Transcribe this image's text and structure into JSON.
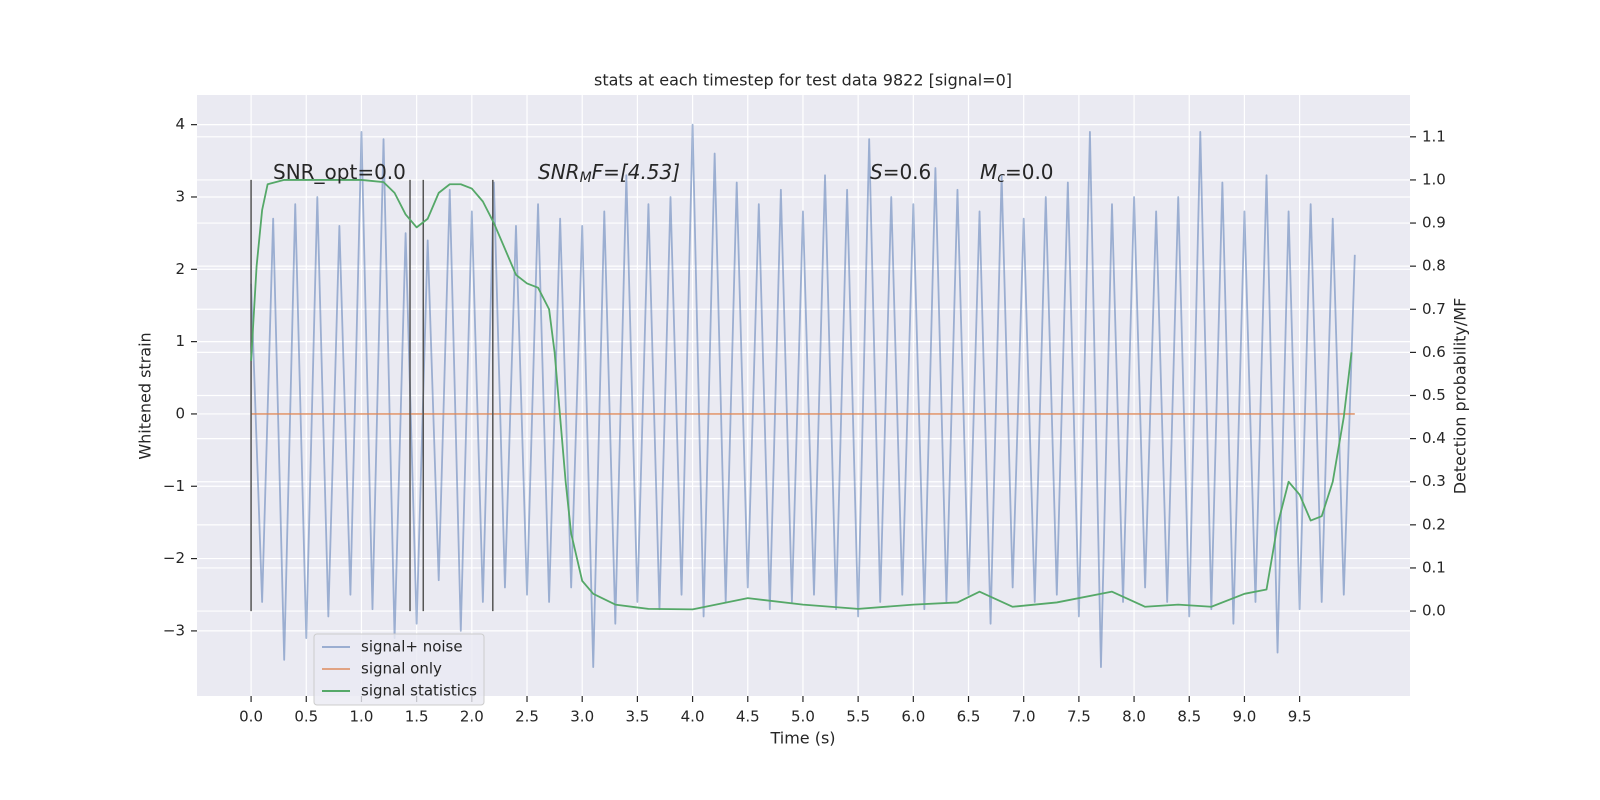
{
  "chart_data": {
    "type": "line",
    "title": "stats at each timestep for test data 9822 [signal=0]",
    "x_label": "Time (s)",
    "y_label": "Whitened strain",
    "y2_label": "Detection probability/MF",
    "xlim": [
      -0.49,
      10.5
    ],
    "ylim": [
      -3.9,
      4.41
    ],
    "y2lim": [
      -0.197,
      1.197
    ],
    "xticks": [
      {
        "value": 0,
        "label": "0.0"
      },
      {
        "value": 0.5,
        "label": "0.5"
      },
      {
        "value": 1,
        "label": "1.0"
      },
      {
        "value": 1.5,
        "label": "1.5"
      },
      {
        "value": 2,
        "label": "2.0"
      },
      {
        "value": 2.5,
        "label": "2.5"
      },
      {
        "value": 3,
        "label": "3.0"
      },
      {
        "value": 3.5,
        "label": "3.5"
      },
      {
        "value": 4,
        "label": "4.0"
      },
      {
        "value": 4.5,
        "label": "4.5"
      },
      {
        "value": 5,
        "label": "5.0"
      },
      {
        "value": 5.5,
        "label": "5.5"
      },
      {
        "value": 6,
        "label": "6.0"
      },
      {
        "value": 6.5,
        "label": "6.5"
      },
      {
        "value": 7,
        "label": "7.0"
      },
      {
        "value": 7.5,
        "label": "7.5"
      },
      {
        "value": 8,
        "label": "8.0"
      },
      {
        "value": 8.5,
        "label": "8.5"
      },
      {
        "value": 9,
        "label": "9.0"
      },
      {
        "value": 9.5,
        "label": "9.5"
      }
    ],
    "yticks": [
      {
        "value": -3,
        "label": "−3"
      },
      {
        "value": -2,
        "label": "−2"
      },
      {
        "value": -1,
        "label": "−1"
      },
      0,
      1,
      2,
      3,
      4
    ],
    "y2ticks": [
      {
        "value": 0,
        "label": "0.0"
      },
      0.1,
      0.2,
      0.3,
      0.4,
      0.5,
      0.6,
      0.7,
      0.8,
      0.9,
      {
        "value": 1,
        "label": "1.0"
      },
      1.1
    ],
    "grid": true,
    "legend": "lower left",
    "annotations": [
      {
        "text": "SNR_opt=0.0"
      },
      {
        "symbol": "SNR",
        "subscript": "M",
        "text": "F=[4.53]"
      },
      {
        "symbol": "S",
        "text": "=0.6"
      },
      {
        "symbol": "M",
        "subscript": "c",
        "text": "=0.0"
      }
    ],
    "vlines": {
      "x": [
        0,
        1.44,
        1.56,
        2.19
      ],
      "ymin": 0,
      "ymax": 1,
      "axis": "y2",
      "color": "#555555"
    },
    "series": [
      {
        "name": "signal+ noise",
        "color": "#4c72b0",
        "alpha": 0.5,
        "x": [
          0,
          0.1,
          0.2,
          0.3,
          0.4,
          0.5,
          0.6,
          0.7,
          0.8,
          0.9,
          1,
          1.1,
          1.2,
          1.3,
          1.4,
          1.5,
          1.6,
          1.7,
          1.8,
          1.9,
          2,
          2.1,
          2.2,
          2.3,
          2.4,
          2.5,
          2.6,
          2.7,
          2.8,
          2.9,
          3,
          3.1,
          3.2,
          3.3,
          3.4,
          3.5,
          3.6,
          3.7,
          3.8,
          3.9,
          4,
          4.1,
          4.2,
          4.3,
          4.4,
          4.5,
          4.6,
          4.7,
          4.8,
          4.9,
          5,
          5.1,
          5.2,
          5.3,
          5.4,
          5.5,
          5.6,
          5.7,
          5.8,
          5.9,
          6,
          6.1,
          6.2,
          6.3,
          6.4,
          6.5,
          6.6,
          6.7,
          6.8,
          6.9,
          7,
          7.1,
          7.2,
          7.3,
          7.4,
          7.5,
          7.6,
          7.7,
          7.8,
          7.9,
          8,
          8.1,
          8.2,
          8.3,
          8.4,
          8.5,
          8.6,
          8.7,
          8.8,
          8.9,
          9,
          9.1,
          9.2,
          9.3,
          9.4,
          9.5,
          9.6,
          9.7,
          9.8,
          9.9,
          10
        ],
        "values": [
          1.8,
          -2.6,
          2.7,
          -3.4,
          2.9,
          -3.1,
          3.0,
          -2.8,
          2.6,
          -2.5,
          3.9,
          -2.7,
          3.8,
          -3.1,
          2.5,
          -2.9,
          2.4,
          -2.3,
          3.1,
          -3.0,
          2.8,
          -2.6,
          3.2,
          -2.4,
          2.6,
          -2.5,
          2.9,
          -2.6,
          2.7,
          -2.4,
          2.6,
          -3.5,
          2.8,
          -2.9,
          3.3,
          -2.6,
          2.9,
          -2.7,
          3.0,
          -2.5,
          4.0,
          -2.8,
          3.6,
          -2.6,
          3.2,
          -2.4,
          2.9,
          -2.7,
          3.1,
          -2.6,
          2.8,
          -2.5,
          3.3,
          -2.7,
          3.1,
          -2.8,
          3.8,
          -2.6,
          3.0,
          -2.5,
          2.9,
          -2.7,
          3.4,
          -2.6,
          3.1,
          -2.5,
          2.8,
          -2.9,
          3.3,
          -2.4,
          2.7,
          -2.6,
          3.0,
          -2.5,
          3.2,
          -2.8,
          3.9,
          -3.5,
          2.9,
          -2.6,
          3.0,
          -2.4,
          2.8,
          -2.6,
          3.0,
          -2.8,
          3.9,
          -2.7,
          3.2,
          -2.9,
          2.8,
          -2.6,
          3.3,
          -3.3,
          2.8,
          -2.7,
          2.9,
          -2.6,
          2.7,
          -2.5,
          2.2
        ]
      },
      {
        "name": "signal only",
        "color": "#dd8452",
        "alpha": 0.7,
        "x": [
          0,
          10
        ],
        "values": [
          0,
          0
        ]
      },
      {
        "name": "signal statistics",
        "color": "#55a868",
        "alpha": 1,
        "axis": "y2",
        "x": [
          0,
          0.05,
          0.1,
          0.15,
          0.3,
          0.6,
          1.0,
          1.2,
          1.3,
          1.4,
          1.5,
          1.6,
          1.7,
          1.8,
          1.9,
          2.0,
          2.1,
          2.2,
          2.3,
          2.4,
          2.5,
          2.6,
          2.7,
          2.75,
          2.8,
          2.85,
          2.9,
          3.0,
          3.1,
          3.3,
          3.6,
          4.0,
          4.5,
          5.0,
          5.5,
          6.0,
          6.4,
          6.6,
          6.9,
          7.3,
          7.8,
          8.1,
          8.4,
          8.7,
          9.0,
          9.2,
          9.3,
          9.4,
          9.5,
          9.6,
          9.7,
          9.8,
          9.9,
          9.97
        ],
        "values": [
          0.58,
          0.8,
          0.93,
          0.99,
          1.0,
          1.0,
          1.0,
          0.995,
          0.97,
          0.92,
          0.89,
          0.91,
          0.97,
          0.99,
          0.99,
          0.98,
          0.95,
          0.9,
          0.84,
          0.78,
          0.76,
          0.75,
          0.7,
          0.6,
          0.45,
          0.3,
          0.18,
          0.07,
          0.04,
          0.015,
          0.005,
          0.004,
          0.03,
          0.015,
          0.005,
          0.015,
          0.02,
          0.045,
          0.01,
          0.02,
          0.045,
          0.01,
          0.015,
          0.01,
          0.04,
          0.05,
          0.2,
          0.3,
          0.27,
          0.21,
          0.22,
          0.3,
          0.45,
          0.6
        ]
      }
    ]
  }
}
